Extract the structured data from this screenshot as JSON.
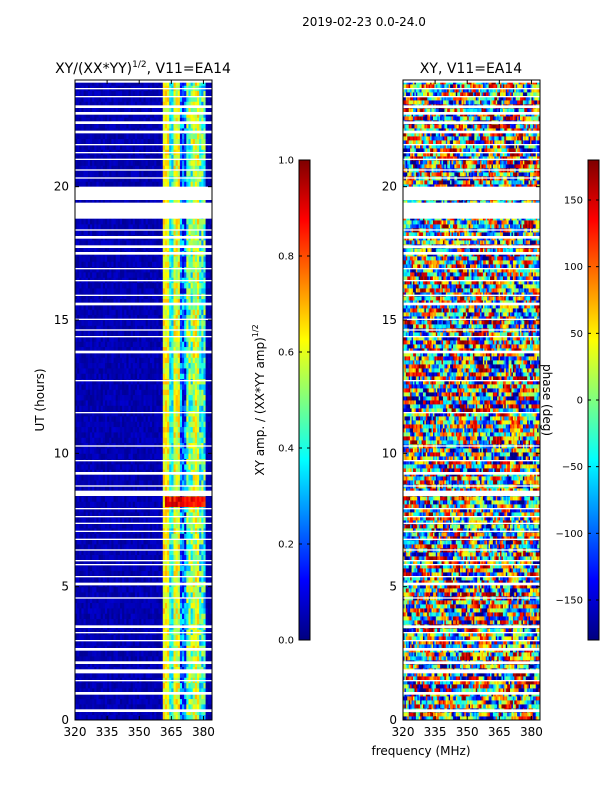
{
  "figure": {
    "suptitle": "2019-02-23 0.0-24.0",
    "xlabel": "frequency (MHz)"
  },
  "colors": {
    "jet": [
      "#00007f",
      "#0000ff",
      "#007fff",
      "#00ffff",
      "#7fff7f",
      "#ffff00",
      "#ff7f00",
      "#ff0000",
      "#7f0000"
    ],
    "background": "#ffffff"
  },
  "chart_data": [
    {
      "type": "heatmap",
      "id": "amp",
      "title_main": "XY/(XX*YY)",
      "title_exp": "1/2",
      "title_rest": ", V11=EA14",
      "xlabel": "",
      "ylabel": "UT (hours)",
      "xlim": [
        320,
        384
      ],
      "ylim": [
        0,
        24
      ],
      "xticks": [
        320,
        335,
        350,
        365,
        380
      ],
      "yticks": [
        0,
        5,
        10,
        15,
        20
      ],
      "colorbar": {
        "label_main": "XY amp. / (XX*YY amp)",
        "label_exp": "1/2",
        "range": [
          0.0,
          1.0
        ],
        "ticks": [
          "0.0",
          "0.2",
          "0.4",
          "0.6",
          "0.8",
          "1.0"
        ],
        "tick_values": [
          0.0,
          0.2,
          0.4,
          0.6,
          0.8,
          1.0
        ]
      },
      "notes": "Mostly near 0 below ~361 MHz; values ~0.3-0.7 in bands between ~361-381 MHz; white rows are flagged/missing times."
    },
    {
      "type": "heatmap",
      "id": "phase",
      "title_main": "XY, V11=EA14",
      "xlabel": "frequency (MHz)",
      "ylabel": "",
      "xlim": [
        320,
        384
      ],
      "ylim": [
        0,
        24
      ],
      "xticks": [
        320,
        335,
        350,
        365,
        380
      ],
      "yticks": [
        0,
        5,
        10,
        15,
        20
      ],
      "colorbar": {
        "label_main": "phase (deg)",
        "range": [
          -180,
          180
        ],
        "ticks": [
          "−150",
          "−100",
          "−50",
          "0",
          "50",
          "100",
          "150"
        ],
        "tick_values": [
          -150,
          -100,
          -50,
          0,
          50,
          100,
          150
        ]
      },
      "notes": "Noisy phase spanning -180 to 180 deg across all frequencies; white rows are flagged/missing times."
    }
  ],
  "flagged_rows": [
    [
      0.3,
      0.4
    ],
    [
      0.95,
      1.05
    ],
    [
      1.45,
      1.5
    ],
    [
      1.75,
      1.9
    ],
    [
      2.1,
      2.2
    ],
    [
      2.6,
      2.7
    ],
    [
      2.95,
      3.0
    ],
    [
      3.25,
      3.3
    ],
    [
      3.45,
      3.55
    ],
    [
      4.55,
      4.6
    ],
    [
      5.05,
      5.15
    ],
    [
      5.35,
      5.4
    ],
    [
      5.8,
      5.85
    ],
    [
      5.95,
      6.0
    ],
    [
      6.35,
      6.4
    ],
    [
      6.75,
      6.8
    ],
    [
      7.05,
      7.1
    ],
    [
      7.35,
      7.4
    ],
    [
      7.6,
      7.65
    ],
    [
      7.9,
      7.95
    ],
    [
      8.4,
      8.6
    ],
    [
      8.75,
      8.8
    ],
    [
      9.2,
      9.3
    ],
    [
      9.7,
      9.75
    ],
    [
      10.25,
      10.3
    ],
    [
      11.5,
      11.55
    ],
    [
      12.7,
      12.75
    ],
    [
      13.75,
      13.85
    ],
    [
      14.35,
      14.4
    ],
    [
      14.6,
      14.65
    ],
    [
      15.0,
      15.05
    ],
    [
      15.55,
      15.65
    ],
    [
      15.9,
      15.95
    ],
    [
      16.45,
      16.5
    ],
    [
      16.9,
      16.95
    ],
    [
      17.45,
      17.55
    ],
    [
      17.7,
      17.8
    ],
    [
      18.05,
      18.15
    ],
    [
      18.35,
      18.4
    ],
    [
      18.8,
      19.4
    ],
    [
      19.5,
      20.0
    ],
    [
      20.3,
      20.35
    ],
    [
      20.6,
      20.65
    ],
    [
      21.0,
      21.05
    ],
    [
      21.25,
      21.3
    ],
    [
      21.55,
      21.6
    ],
    [
      22.0,
      22.1
    ],
    [
      22.35,
      22.45
    ],
    [
      22.7,
      22.8
    ],
    [
      22.95,
      23.05
    ],
    [
      23.35,
      23.4
    ],
    [
      23.65,
      23.7
    ],
    [
      23.9,
      24.0
    ]
  ]
}
